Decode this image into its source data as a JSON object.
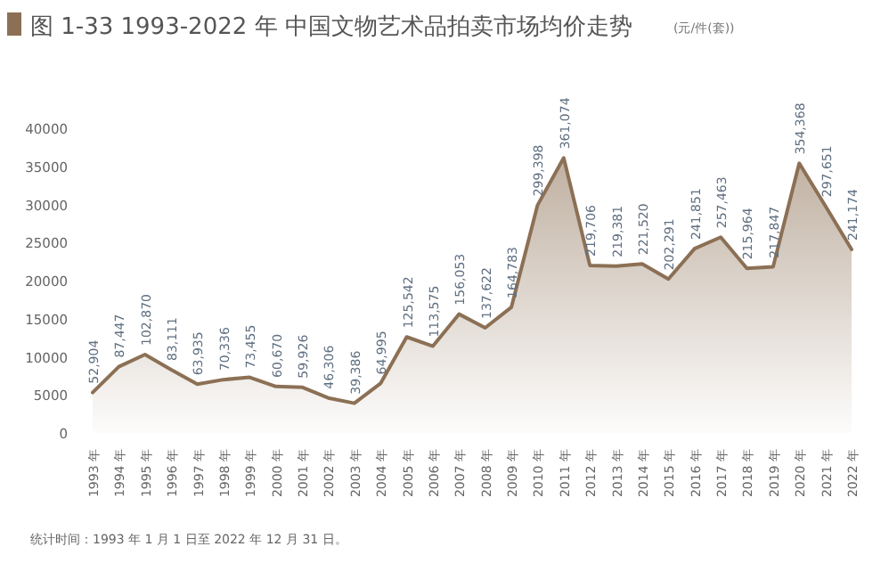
{
  "chart_data": {
    "type": "area",
    "title": "图 1-33 1993-2022 年 中国文物艺术品拍卖市场均价走势",
    "subtitle": "(元/件(套))",
    "categories": [
      "1993 年",
      "1994 年",
      "1995 年",
      "1996 年",
      "1997 年",
      "1998 年",
      "1999 年",
      "2000 年",
      "2001 年",
      "2002 年",
      "2003 年",
      "2004 年",
      "2005 年",
      "2006 年",
      "2007 年",
      "2008 年",
      "2009 年",
      "2010 年",
      "2011 年",
      "2012 年",
      "2013 年",
      "2014 年",
      "2015 年",
      "2016 年",
      "2017 年",
      "2018 年",
      "2019 年",
      "2020 年",
      "2021 年",
      "2022 年"
    ],
    "values": [
      5300,
      8700,
      10300,
      8300,
      6400,
      7000,
      7300,
      6100,
      6000,
      4600,
      3900,
      6500,
      12600,
      11400,
      15600,
      13800,
      16500,
      29900,
      36100,
      22000,
      21900,
      22200,
      20200,
      24200,
      25700,
      21600,
      21800,
      35400,
      29800,
      24100
    ],
    "color": "#8c7055",
    "ylim": [
      0,
      40000
    ],
    "yticks": [
      0,
      5000,
      10000,
      15000,
      20000,
      25000,
      30000,
      35000,
      40000
    ],
    "annotations": [
      "统计时间：1993 年 1 月 1 日至 2022 年 12 月 31 日。",
      {
        "text": "52,904",
        "x": "1993 年",
        "y": 5300
      },
      {
        "text": "87,447",
        "x": "1994 年",
        "y": 8700
      },
      {
        "text": "102,870",
        "x": "1995 年",
        "y": 10300
      },
      {
        "text": "83,111",
        "x": "1996 年",
        "y": 8300
      },
      {
        "text": "63,935",
        "x": "1997 年",
        "y": 6400
      },
      {
        "text": "70,336",
        "x": "1998 年",
        "y": 7000
      },
      {
        "text": "73,455",
        "x": "1999 年",
        "y": 7300
      },
      {
        "text": "60,670",
        "x": "2000 年",
        "y": 6100
      },
      {
        "text": "59,926",
        "x": "2001 年",
        "y": 6000
      },
      {
        "text": "46,306",
        "x": "2002 年",
        "y": 4600
      },
      {
        "text": "39,386",
        "x": "2003 年",
        "y": 3900
      },
      {
        "text": "64,995",
        "x": "2004 年",
        "y": 6500
      },
      {
        "text": "125,542",
        "x": "2005 年",
        "y": 12600
      },
      {
        "text": "113,575",
        "x": "2006 年",
        "y": 11400
      },
      {
        "text": "156,053",
        "x": "2007 年",
        "y": 15600
      },
      {
        "text": "137,622",
        "x": "2008 年",
        "y": 13800
      },
      {
        "text": "164,783",
        "x": "2009 年",
        "y": 16500
      },
      {
        "text": "299,398",
        "x": "2010 年",
        "y": 29900
      },
      {
        "text": "361,074",
        "x": "2011 年",
        "y": 36100
      },
      {
        "text": "219,706",
        "x": "2012 年",
        "y": 22000
      },
      {
        "text": "219,381",
        "x": "2013 年",
        "y": 21900
      },
      {
        "text": "221,520",
        "x": "2014 年",
        "y": 22200
      },
      {
        "text": "202,291",
        "x": "2015 年",
        "y": 20200
      },
      {
        "text": "241,851",
        "x": "2016 年",
        "y": 24200
      },
      {
        "text": "257,463",
        "x": "2017 年",
        "y": 25700
      },
      {
        "text": "215,964",
        "x": "2018 年",
        "y": 21600
      },
      {
        "text": "217,847",
        "x": "2019 年",
        "y": 21800
      },
      {
        "text": "354,368",
        "x": "2020 年",
        "y": 35400
      },
      {
        "text": "297,651",
        "x": "2021 年",
        "y": 29800
      },
      {
        "text": "241,174",
        "x": "2022 年",
        "y": 24100
      }
    ]
  }
}
